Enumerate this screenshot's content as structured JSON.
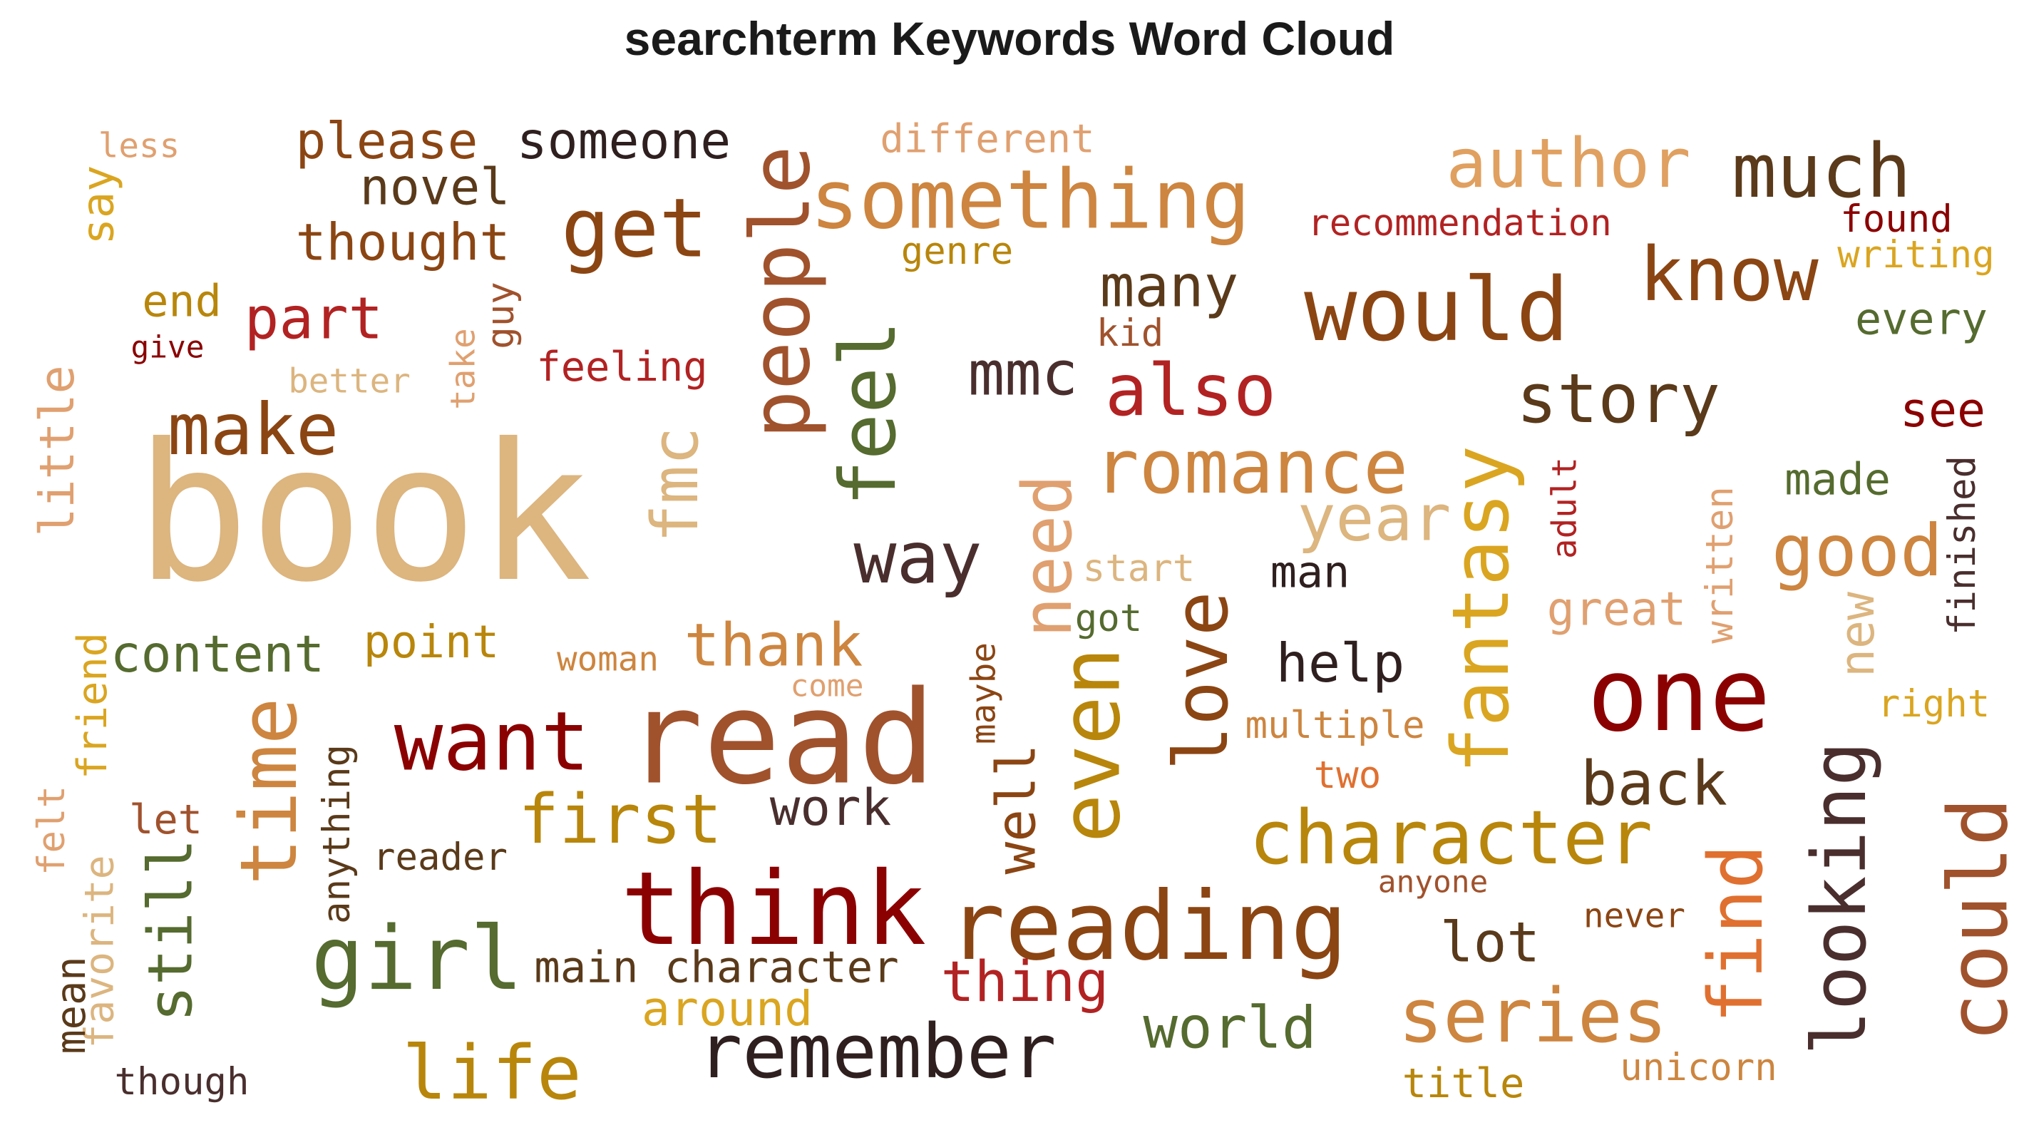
{
  "chart_data": {
    "type": "wordcloud",
    "title": "searchterm Keywords Word Cloud",
    "words": [
      {
        "text": "book",
        "color": "#dcb57f"
      },
      {
        "text": "read",
        "color": "#a0522d"
      },
      {
        "text": "one",
        "color": "#8b0000"
      },
      {
        "text": "think",
        "color": "#8b0000"
      },
      {
        "text": "want",
        "color": "#8b0000"
      },
      {
        "text": "reading",
        "color": "#8b4513"
      },
      {
        "text": "would",
        "color": "#8b4513"
      },
      {
        "text": "something",
        "color": "#cd853f"
      },
      {
        "text": "get",
        "color": "#8b4513"
      },
      {
        "text": "people",
        "color": "#a0522d"
      },
      {
        "text": "author",
        "color": "#e0a060"
      },
      {
        "text": "know",
        "color": "#8b4513"
      },
      {
        "text": "much",
        "color": "#5a3a1a"
      },
      {
        "text": "girl",
        "color": "#556b2f"
      },
      {
        "text": "time",
        "color": "#cd853f"
      },
      {
        "text": "character",
        "color": "#b8860b"
      },
      {
        "text": "romance",
        "color": "#cd853f"
      },
      {
        "text": "fantasy",
        "color": "#daa520"
      },
      {
        "text": "even",
        "color": "#b8860b"
      },
      {
        "text": "could",
        "color": "#a0522d"
      },
      {
        "text": "looking",
        "color": "#4a2e2e"
      },
      {
        "text": "love",
        "color": "#8b4513"
      },
      {
        "text": "story",
        "color": "#5a3a1a"
      },
      {
        "text": "feel",
        "color": "#556b2f"
      },
      {
        "text": "remember",
        "color": "#2f1f1f"
      },
      {
        "text": "life",
        "color": "#b8860b"
      },
      {
        "text": "series",
        "color": "#cd853f"
      },
      {
        "text": "find",
        "color": "#e07030"
      },
      {
        "text": "make",
        "color": "#8b4513"
      },
      {
        "text": "way",
        "color": "#4a2e2e"
      },
      {
        "text": "good",
        "color": "#cd853f"
      },
      {
        "text": "also",
        "color": "#b22222"
      },
      {
        "text": "need",
        "color": "#e0a070"
      },
      {
        "text": "fmc",
        "color": "#dcb57f"
      },
      {
        "text": "first",
        "color": "#b8860b"
      },
      {
        "text": "year",
        "color": "#dcb57f"
      },
      {
        "text": "thank",
        "color": "#cd853f"
      },
      {
        "text": "still",
        "color": "#556b2f"
      },
      {
        "text": "back",
        "color": "#5a3a1a"
      },
      {
        "text": "mmc",
        "color": "#4a2e2e"
      },
      {
        "text": "many",
        "color": "#5a3a1a"
      },
      {
        "text": "part",
        "color": "#b22222"
      },
      {
        "text": "thought",
        "color": "#8b4513"
      },
      {
        "text": "please",
        "color": "#8b4513"
      },
      {
        "text": "someone",
        "color": "#2f1f1f"
      },
      {
        "text": "novel",
        "color": "#5a3a1a"
      },
      {
        "text": "lot",
        "color": "#5a3a1a"
      },
      {
        "text": "world",
        "color": "#556b2f"
      },
      {
        "text": "thing",
        "color": "#b22222"
      },
      {
        "text": "help",
        "color": "#2f1f1f"
      },
      {
        "text": "content",
        "color": "#556b2f"
      },
      {
        "text": "well",
        "color": "#8b4513"
      },
      {
        "text": "work",
        "color": "#4a2e2e"
      },
      {
        "text": "main character",
        "color": "#5a3a1a"
      },
      {
        "text": "around",
        "color": "#daa520"
      },
      {
        "text": "point",
        "color": "#b8860b"
      },
      {
        "text": "great",
        "color": "#e0a070"
      },
      {
        "text": "new",
        "color": "#dcb57f"
      },
      {
        "text": "made",
        "color": "#556b2f"
      },
      {
        "text": "see",
        "color": "#8b0000"
      },
      {
        "text": "every",
        "color": "#556b2f"
      },
      {
        "text": "man",
        "color": "#2f1f1f"
      },
      {
        "text": "little",
        "color": "#e0a070"
      },
      {
        "text": "end",
        "color": "#b8860b"
      },
      {
        "text": "say",
        "color": "#daa520"
      },
      {
        "text": "feeling",
        "color": "#b22222"
      },
      {
        "text": "different",
        "color": "#e0a070"
      },
      {
        "text": "recommendation",
        "color": "#b22222"
      },
      {
        "text": "found",
        "color": "#8b0000"
      },
      {
        "text": "writing",
        "color": "#daa520"
      },
      {
        "text": "genre",
        "color": "#b8860b"
      },
      {
        "text": "kid",
        "color": "#a0522d"
      },
      {
        "text": "start",
        "color": "#dcb57f"
      },
      {
        "text": "got",
        "color": "#556b2f"
      },
      {
        "text": "written",
        "color": "#e0a070"
      },
      {
        "text": "finished",
        "color": "#4a2e2e"
      },
      {
        "text": "adult",
        "color": "#b22222"
      },
      {
        "text": "right",
        "color": "#daa520"
      },
      {
        "text": "multiple",
        "color": "#cd853f"
      },
      {
        "text": "two",
        "color": "#e07030"
      },
      {
        "text": "anyone",
        "color": "#a0522d"
      },
      {
        "text": "never",
        "color": "#8b4513"
      },
      {
        "text": "unicorn",
        "color": "#cd853f"
      },
      {
        "text": "title",
        "color": "#b8860b"
      },
      {
        "text": "woman",
        "color": "#cd853f"
      },
      {
        "text": "come",
        "color": "#e0a070"
      },
      {
        "text": "maybe",
        "color": "#8b4513"
      },
      {
        "text": "anything",
        "color": "#5a3a1a"
      },
      {
        "text": "reader",
        "color": "#5a3a1a"
      },
      {
        "text": "let",
        "color": "#a0522d"
      },
      {
        "text": "friend",
        "color": "#daa520"
      },
      {
        "text": "felt",
        "color": "#e0a070"
      },
      {
        "text": "favorite",
        "color": "#dcb57f"
      },
      {
        "text": "mean",
        "color": "#5a3a1a"
      },
      {
        "text": "though",
        "color": "#4a2e2e"
      },
      {
        "text": "less",
        "color": "#e0a070"
      },
      {
        "text": "give",
        "color": "#8b0000"
      },
      {
        "text": "better",
        "color": "#dcb57f"
      },
      {
        "text": "take",
        "color": "#e0a070"
      },
      {
        "text": "guy",
        "color": "#a0522d"
      }
    ]
  }
}
